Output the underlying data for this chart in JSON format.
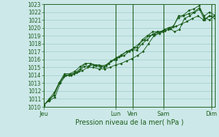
{
  "title": "Pression niveau de la mer( hPa )",
  "bg_color": "#cce8e8",
  "grid_color": "#99cccc",
  "line_color": "#1a5c1a",
  "ylim": [
    1010,
    1023
  ],
  "yticks": [
    1010,
    1011,
    1012,
    1013,
    1014,
    1015,
    1016,
    1017,
    1018,
    1019,
    1020,
    1021,
    1022,
    1023
  ],
  "xtick_labels": [
    "Jeu",
    "Lun",
    "Ven",
    "Sam",
    "Dim"
  ],
  "day_positions": [
    0.0,
    0.42,
    0.52,
    0.7,
    0.98
  ],
  "series": [
    [
      1010.2,
      1010.8,
      1011.5,
      1013.0,
      1013.8,
      1014.0,
      1014.2,
      1014.5,
      1015.1,
      1015.2,
      1015.3,
      1015.3,
      1015.0,
      1015.5,
      1016.0,
      1016.3,
      1016.5,
      1017.0,
      1017.5,
      1018.0,
      1018.5,
      1019.0,
      1019.2,
      1019.4,
      1019.8,
      1020.0,
      1019.5,
      1019.8,
      1021.2,
      1021.5,
      1022.0,
      1022.3,
      1021.0,
      1021.5,
      1021.2
    ],
    [
      1010.2,
      1010.9,
      1011.5,
      1013.0,
      1014.0,
      1014.1,
      1014.3,
      1014.8,
      1015.5,
      1015.5,
      1015.3,
      1015.2,
      1015.3,
      1015.8,
      1016.2,
      1016.6,
      1017.0,
      1017.3,
      1017.5,
      1018.5,
      1019.0,
      1019.5,
      1019.5,
      1019.6,
      1020.0,
      1020.2,
      1021.3,
      1021.5,
      1021.8,
      1022.0,
      1022.5,
      1021.5,
      1022.0,
      1021.6
    ],
    [
      1010.2,
      1011.0,
      1011.8,
      1013.1,
      1014.2,
      1014.2,
      1014.5,
      1015.1,
      1015.5,
      1015.5,
      1015.2,
      1015.0,
      1015.2,
      1015.8,
      1016.0,
      1016.5,
      1017.0,
      1017.2,
      1017.2,
      1018.0,
      1018.5,
      1019.2,
      1019.5,
      1019.5,
      1019.8,
      1020.1,
      1021.5,
      1021.6,
      1022.2,
      1022.4,
      1022.8,
      1021.3,
      1021.0,
      1021.5
    ],
    [
      1010.3,
      1010.8,
      1011.2,
      1013.0,
      1014.0,
      1014.0,
      1014.3,
      1014.6,
      1015.0,
      1015.0,
      1014.8,
      1014.8,
      1015.0,
      1015.3,
      1015.5,
      1015.8,
      1016.1,
      1016.5,
      1017.0,
      1018.0,
      1019.0,
      1019.3,
      1019.6,
      1019.9,
      1020.2,
      1020.5,
      1020.8,
      1021.2,
      1021.5,
      1021.0,
      1021.5,
      1021.5
    ]
  ]
}
